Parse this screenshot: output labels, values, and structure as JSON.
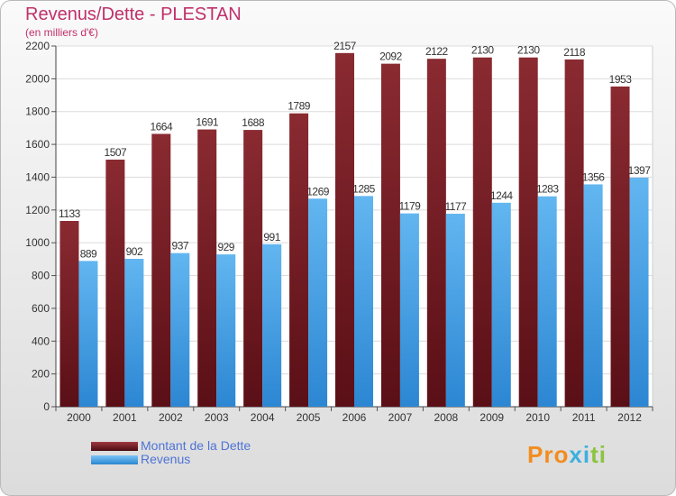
{
  "chart_data": {
    "type": "bar",
    "title": "Revenus/Dette - PLESTAN",
    "subtitle": "(en milliers d'€)",
    "categories": [
      "2000",
      "2001",
      "2002",
      "2003",
      "2004",
      "2005",
      "2006",
      "2007",
      "2008",
      "2009",
      "2010",
      "2011",
      "2012"
    ],
    "series": [
      {
        "name": "Montant de la Dette",
        "color": "#7a1f26",
        "values": [
          1133,
          1507,
          1664,
          1691,
          1688,
          1789,
          2157,
          2092,
          2122,
          2130,
          2130,
          2118,
          1953
        ]
      },
      {
        "name": "Revenus",
        "color": "#4aa3e8",
        "values": [
          889,
          902,
          937,
          929,
          991,
          1269,
          1285,
          1179,
          1177,
          1244,
          1283,
          1356,
          1397
        ]
      }
    ],
    "ylim": [
      0,
      2200
    ],
    "yticks": [
      0,
      200,
      400,
      600,
      800,
      1000,
      1200,
      1400,
      1600,
      1800,
      2000,
      2200
    ],
    "grid": true,
    "legend_position": "bottom-left"
  },
  "logo": {
    "text": "Proxiti",
    "colors": [
      "#f28c1e",
      "#f28c1e",
      "#f28c1e",
      "#3cb0e0",
      "#3cb0e0",
      "#8bc43f",
      "#8bc43f"
    ]
  }
}
